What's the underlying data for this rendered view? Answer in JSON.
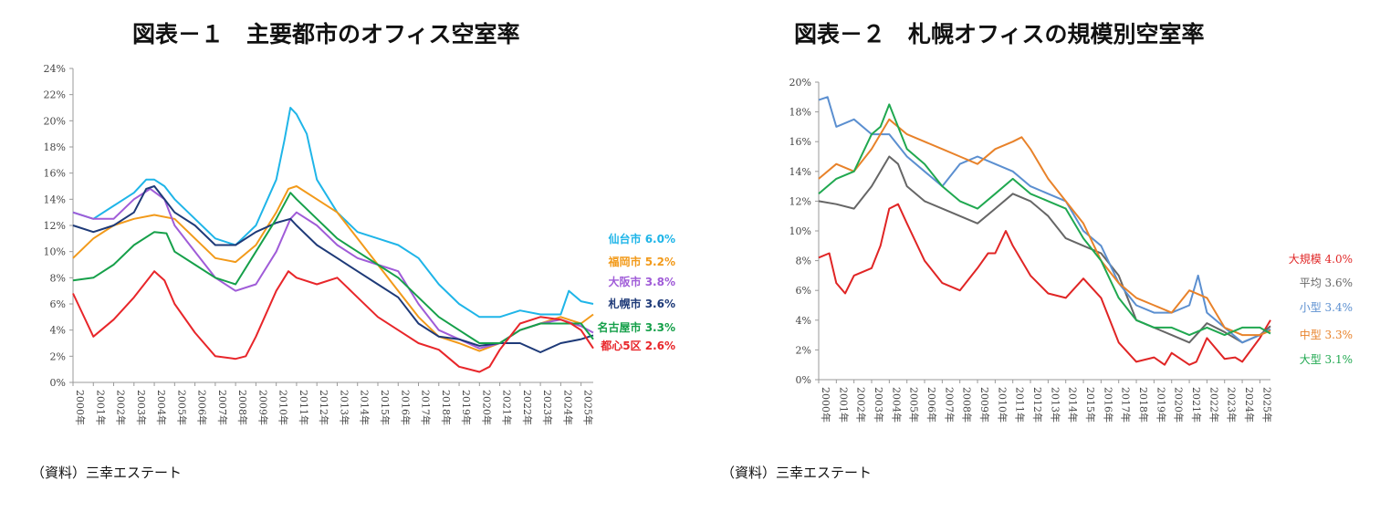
{
  "charts": [
    {
      "title": "図表－１　主要都市のオフィス空室率",
      "source": "（資料）三幸エステート"
    },
    {
      "title": "図表－２　札幌オフィスの規模別空室率",
      "source": "（資料）三幸エステート"
    }
  ],
  "chart_data": [
    {
      "type": "line",
      "title": "図表－１　主要都市のオフィス空室率",
      "x_labels": [
        "2000年",
        "2001年",
        "2002年",
        "2003年",
        "2004年",
        "2005年",
        "2006年",
        "2007年",
        "2008年",
        "2009年",
        "2010年",
        "2011年",
        "2012年",
        "2013年",
        "2014年",
        "2015年",
        "2016年",
        "2017年",
        "2018年",
        "2019年",
        "2020年",
        "2021年",
        "2022年",
        "2023年",
        "2024年",
        "2025年"
      ],
      "x_range": [
        2000,
        2025.6
      ],
      "y_ticks": [
        "0%",
        "2%",
        "4%",
        "6%",
        "8%",
        "10%",
        "12%",
        "14%",
        "16%",
        "18%",
        "20%",
        "22%",
        "24%"
      ],
      "ylim": [
        0,
        24
      ],
      "series": [
        {
          "name": "仙台市",
          "label": "仙台市 6.0%",
          "color": "#1fb5e8",
          "x": [
            2000,
            2001,
            2002,
            2003,
            2003.6,
            2004,
            2004.5,
            2005,
            2006,
            2007,
            2008,
            2009,
            2010,
            2010.4,
            2010.7,
            2011,
            2011.5,
            2012,
            2013,
            2014,
            2015,
            2016,
            2017,
            2018,
            2019,
            2020,
            2021,
            2022,
            2023,
            2024,
            2024.4,
            2025,
            2025.6
          ],
          "y": [
            13,
            12.5,
            13.5,
            14.5,
            15.5,
            15.5,
            15,
            14,
            12.5,
            11,
            10.5,
            12,
            15.5,
            18.5,
            21,
            20.5,
            19,
            15.5,
            13,
            11.5,
            11,
            10.5,
            9.5,
            7.5,
            6,
            5,
            5,
            5.5,
            5.2,
            5.2,
            7,
            6.2,
            6
          ]
        },
        {
          "name": "福岡市",
          "label": "福岡市 5.2%",
          "color": "#f29a1a",
          "x": [
            2000,
            2001,
            2002,
            2003,
            2004,
            2005,
            2006,
            2007,
            2008,
            2009,
            2010,
            2010.6,
            2011,
            2012,
            2013,
            2014,
            2015,
            2016,
            2017,
            2018,
            2019,
            2020,
            2021,
            2022,
            2023,
            2024,
            2025,
            2025.6
          ],
          "y": [
            9.5,
            11,
            12,
            12.5,
            12.8,
            12.5,
            11,
            9.5,
            9.2,
            10.5,
            13,
            14.8,
            15,
            14,
            13,
            11,
            9,
            7,
            5,
            3.5,
            3,
            2.4,
            3,
            4,
            4.5,
            5,
            4.5,
            5.2
          ]
        },
        {
          "name": "大阪市",
          "label": "大阪市 3.8%",
          "color": "#a05cd8",
          "x": [
            2000,
            2001,
            2002,
            2003,
            2003.8,
            2004.5,
            2005,
            2006,
            2007,
            2008,
            2009,
            2010,
            2010.7,
            2011,
            2012,
            2013,
            2014,
            2015,
            2016,
            2017,
            2018,
            2019,
            2020,
            2021,
            2022,
            2023,
            2024,
            2025,
            2025.6
          ],
          "y": [
            13,
            12.5,
            12.5,
            14,
            14.8,
            14,
            12,
            10,
            8,
            7,
            7.5,
            10,
            12.5,
            13,
            12,
            10.5,
            9.5,
            9,
            8.5,
            6,
            4,
            3.3,
            2.6,
            3,
            4,
            4.5,
            4.8,
            4.3,
            3.8
          ]
        },
        {
          "name": "札幌市",
          "label": "札幌市 3.6%",
          "color": "#1e3a78",
          "x": [
            2000,
            2001,
            2002,
            2003,
            2003.6,
            2004,
            2004.5,
            2005,
            2006,
            2007,
            2008,
            2009,
            2010,
            2010.7,
            2011,
            2012,
            2013,
            2014,
            2015,
            2016,
            2017,
            2018,
            2019,
            2020,
            2021,
            2022,
            2023,
            2024,
            2025,
            2025.6
          ],
          "y": [
            12,
            11.5,
            12,
            13,
            14.8,
            15,
            14,
            13,
            12,
            10.5,
            10.5,
            11.5,
            12.2,
            12.5,
            12,
            10.5,
            9.5,
            8.5,
            7.5,
            6.5,
            4.5,
            3.5,
            3.3,
            2.8,
            3,
            3,
            2.3,
            3,
            3.3,
            3.6
          ]
        },
        {
          "name": "名古屋市",
          "label": "名古屋市 3.3%",
          "color": "#16a04a",
          "x": [
            2000,
            2001,
            2002,
            2003,
            2004,
            2004.6,
            2005,
            2006,
            2007,
            2008,
            2009,
            2010,
            2010.7,
            2011,
            2012,
            2013,
            2014,
            2015,
            2016,
            2017,
            2018,
            2019,
            2020,
            2021,
            2022,
            2023,
            2024,
            2025,
            2025.6
          ],
          "y": [
            7.8,
            8,
            9,
            10.5,
            11.5,
            11.4,
            10,
            9,
            8,
            7.5,
            10,
            12.5,
            14.5,
            14,
            12.5,
            11,
            10,
            9,
            8,
            6.5,
            5,
            4,
            3,
            3,
            4,
            4.5,
            4.5,
            4.5,
            3.3
          ]
        },
        {
          "name": "都心5区",
          "label": "都心5区 2.6%",
          "color": "#e8262a",
          "x": [
            2000,
            2001,
            2002,
            2003,
            2004,
            2004.5,
            2005,
            2006,
            2007,
            2008,
            2008.5,
            2009,
            2010,
            2010.6,
            2011,
            2012,
            2013,
            2014,
            2015,
            2016,
            2017,
            2018,
            2019,
            2020,
            2020.5,
            2021,
            2022,
            2023,
            2024,
            2024.5,
            2025,
            2025.6
          ],
          "y": [
            6.8,
            3.5,
            4.8,
            6.5,
            8.5,
            7.8,
            6,
            3.8,
            2,
            1.8,
            2,
            3.5,
            7,
            8.5,
            8,
            7.5,
            8,
            6.5,
            5,
            4,
            3,
            2.5,
            1.2,
            0.8,
            1.2,
            2.5,
            4.5,
            5,
            4.8,
            4.5,
            4,
            2.6
          ]
        }
      ]
    },
    {
      "type": "line",
      "title": "図表－２　札幌オフィスの規模別空室率",
      "x_labels": [
        "2000年",
        "2001年",
        "2002年",
        "2003年",
        "2004年",
        "2005年",
        "2006年",
        "2007年",
        "2008年",
        "2009年",
        "2010年",
        "2011年",
        "2012年",
        "2013年",
        "2014年",
        "2015年",
        "2016年",
        "2017年",
        "2018年",
        "2019年",
        "2020年",
        "2021年",
        "2022年",
        "2023年",
        "2024年",
        "2025年"
      ],
      "x_range": [
        2000,
        2025.6
      ],
      "y_ticks": [
        "0%",
        "2%",
        "4%",
        "6%",
        "8%",
        "10%",
        "12%",
        "14%",
        "16%",
        "18%",
        "20%"
      ],
      "ylim": [
        0,
        20
      ],
      "series": [
        {
          "name": "大規模",
          "label": "大規模 4.0%",
          "color": "#e02525",
          "x": [
            2000,
            2000.6,
            2001,
            2001.5,
            2002,
            2003,
            2003.5,
            2004,
            2004.5,
            2005,
            2006,
            2007,
            2008,
            2009,
            2009.6,
            2010,
            2010.6,
            2011,
            2012,
            2013,
            2014,
            2015,
            2016,
            2017,
            2018,
            2019,
            2019.6,
            2020,
            2021,
            2021.4,
            2022,
            2023,
            2023.6,
            2024,
            2025,
            2025.6
          ],
          "y": [
            8.2,
            8.5,
            6.5,
            5.8,
            7,
            7.5,
            9,
            11.5,
            11.8,
            10.5,
            8,
            6.5,
            6,
            7.5,
            8.5,
            8.5,
            10,
            9,
            7,
            5.8,
            5.5,
            6.8,
            5.5,
            2.5,
            1.2,
            1.5,
            1,
            1.8,
            1,
            1.2,
            2.8,
            1.4,
            1.5,
            1.2,
            2.8,
            4
          ]
        },
        {
          "name": "平均",
          "label": "平均 3.6%",
          "color": "#666666",
          "x": [
            2000,
            2001,
            2002,
            2003,
            2004,
            2004.5,
            2005,
            2006,
            2007,
            2008,
            2009,
            2010,
            2011,
            2012,
            2013,
            2014,
            2015,
            2016,
            2017,
            2018,
            2019,
            2020,
            2021,
            2022,
            2023,
            2024,
            2025,
            2025.6
          ],
          "y": [
            12,
            11.8,
            11.5,
            13,
            15,
            14.5,
            13,
            12,
            11.5,
            11,
            10.5,
            11.5,
            12.5,
            12,
            11,
            9.5,
            9,
            8.5,
            7,
            4,
            3.5,
            3,
            2.5,
            3.8,
            3.2,
            2.5,
            3,
            3.6
          ]
        },
        {
          "name": "小型",
          "label": "小型 3.4%",
          "color": "#5b8fd0",
          "x": [
            2000,
            2000.5,
            2001,
            2002,
            2003,
            2004,
            2005,
            2006,
            2007,
            2008,
            2009,
            2010,
            2011,
            2012,
            2013,
            2014,
            2015,
            2016,
            2017,
            2018,
            2019,
            2020,
            2021,
            2021.5,
            2022,
            2023,
            2024,
            2025,
            2025.6
          ],
          "y": [
            18.8,
            19,
            17,
            17.5,
            16.5,
            16.5,
            15,
            14,
            13,
            14.5,
            15,
            14.5,
            14,
            13,
            12.5,
            12,
            10,
            9,
            6.5,
            5,
            4.5,
            4.5,
            5,
            7,
            4.5,
            3.5,
            2.5,
            3,
            3.4
          ]
        },
        {
          "name": "中型",
          "label": "中型 3.3%",
          "color": "#e8822a",
          "x": [
            2000,
            2001,
            2002,
            2003,
            2004,
            2005,
            2006,
            2007,
            2008,
            2009,
            2010,
            2011,
            2011.5,
            2012,
            2013,
            2014,
            2015,
            2016,
            2017,
            2018,
            2019,
            2020,
            2021,
            2022,
            2023,
            2024,
            2025,
            2025.6
          ],
          "y": [
            13.5,
            14.5,
            14,
            15.5,
            17.5,
            16.5,
            16,
            15.5,
            15,
            14.5,
            15.5,
            16,
            16.3,
            15.5,
            13.5,
            12,
            10.5,
            8,
            6.5,
            5.5,
            5,
            4.5,
            6,
            5.5,
            3.5,
            3,
            3,
            3.3
          ]
        },
        {
          "name": "大型",
          "label": "大型 3.1%",
          "color": "#20a850",
          "x": [
            2000,
            2001,
            2002,
            2003,
            2003.5,
            2004,
            2005,
            2006,
            2007,
            2008,
            2009,
            2010,
            2011,
            2012,
            2013,
            2014,
            2015,
            2016,
            2017,
            2018,
            2019,
            2020,
            2021,
            2022,
            2023,
            2024,
            2025,
            2025.6
          ],
          "y": [
            12.5,
            13.5,
            14,
            16.5,
            17,
            18.5,
            15.5,
            14.5,
            13,
            12,
            11.5,
            12.5,
            13.5,
            12.5,
            12,
            11.5,
            9.5,
            8,
            5.5,
            4,
            3.5,
            3.5,
            3,
            3.5,
            3,
            3.5,
            3.5,
            3.1
          ]
        }
      ]
    }
  ]
}
